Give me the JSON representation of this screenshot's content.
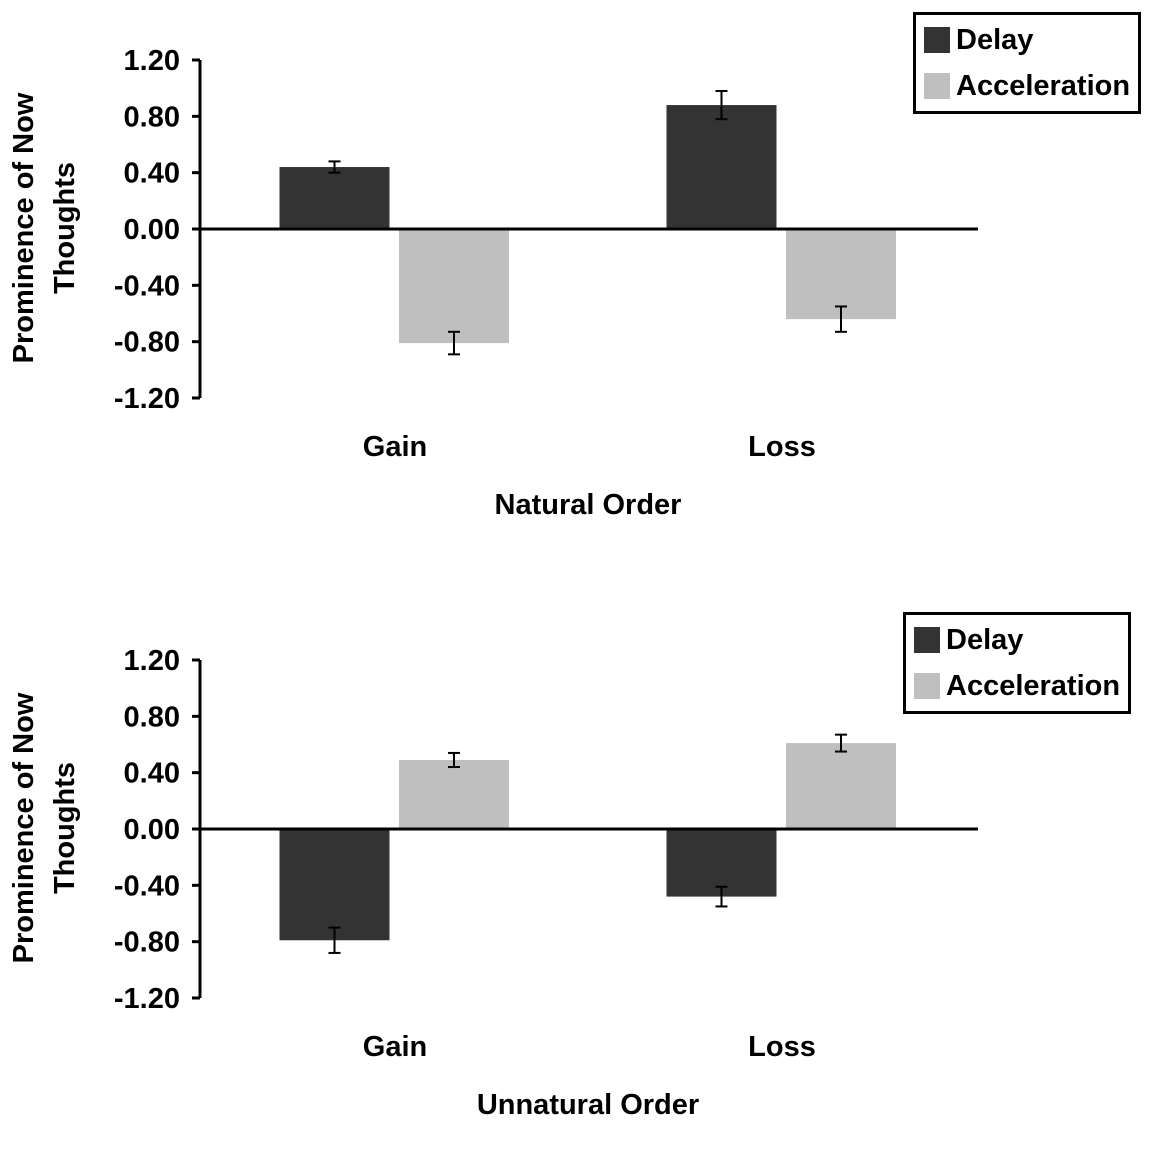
{
  "chart_data": [
    {
      "type": "bar",
      "xlabel": "Natural Order",
      "ylabel": "Prominence of Now Thoughts",
      "categories": [
        "Gain",
        "Loss"
      ],
      "ylim": [
        -1.2,
        1.2
      ],
      "yticks": [
        "1.20",
        "0.80",
        "0.40",
        "0.00",
        "-0.40",
        "-0.80",
        "-1.20"
      ],
      "series": [
        {
          "name": "Delay",
          "values": [
            0.44,
            0.88
          ],
          "errors": [
            0.04,
            0.1
          ]
        },
        {
          "name": "Acceleration",
          "values": [
            -0.81,
            -0.64
          ],
          "errors": [
            0.08,
            0.09
          ]
        }
      ],
      "legend": "top-right",
      "grid": false
    },
    {
      "type": "bar",
      "xlabel": "Unnatural Order",
      "ylabel": "Prominence of Now Thoughts",
      "categories": [
        "Gain",
        "Loss"
      ],
      "ylim": [
        -1.2,
        1.2
      ],
      "yticks": [
        "1.20",
        "0.80",
        "0.40",
        "0.00",
        "-0.40",
        "-0.80",
        "-1.20"
      ],
      "series": [
        {
          "name": "Delay",
          "values": [
            -0.79,
            -0.48
          ],
          "errors": [
            0.09,
            0.07
          ]
        },
        {
          "name": "Acceleration",
          "values": [
            0.49,
            0.61
          ],
          "errors": [
            0.05,
            0.06
          ]
        }
      ],
      "legend": "top-right",
      "grid": false
    }
  ],
  "colors": {
    "delay": "#333333",
    "acceleration": "#bfbfbf"
  }
}
